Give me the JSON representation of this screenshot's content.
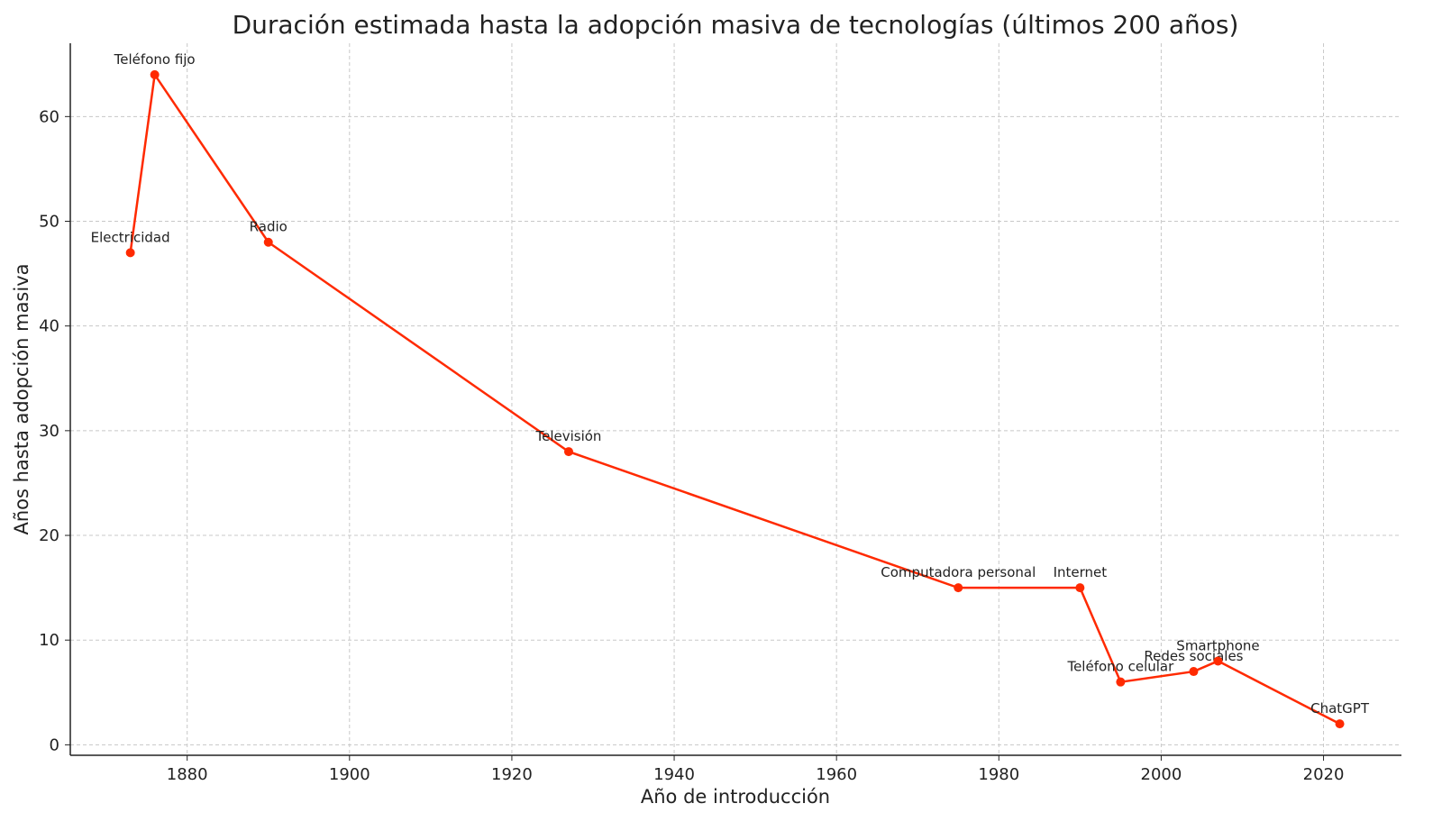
{
  "chart_data": {
    "type": "line",
    "title": "Duración estimada hasta la adopción masiva de tecnologías (últimos 200 años)",
    "xlabel": "Año de introducción",
    "ylabel": "Años hasta adopción masiva",
    "xlim": [
      1865.6,
      2029.6
    ],
    "ylim": [
      -1,
      67
    ],
    "xticks": [
      1880,
      1900,
      1920,
      1940,
      1960,
      1980,
      2000,
      2020
    ],
    "yticks": [
      0,
      10,
      20,
      30,
      40,
      50,
      60
    ],
    "grid": true,
    "line_color": "#ff2a00",
    "points": [
      {
        "label": "Electricidad",
        "x": 1873,
        "y": 47
      },
      {
        "label": "Teléfono fijo",
        "x": 1876,
        "y": 64
      },
      {
        "label": "Radio",
        "x": 1890,
        "y": 48
      },
      {
        "label": "Televisión",
        "x": 1927,
        "y": 28
      },
      {
        "label": "Computadora personal",
        "x": 1975,
        "y": 15
      },
      {
        "label": "Internet",
        "x": 1990,
        "y": 15
      },
      {
        "label": "Teléfono celular",
        "x": 1995,
        "y": 6
      },
      {
        "label": "Redes sociales",
        "x": 2004,
        "y": 7
      },
      {
        "label": "Smartphone",
        "x": 2007,
        "y": 8
      },
      {
        "label": "ChatGPT",
        "x": 2022,
        "y": 2
      }
    ]
  }
}
